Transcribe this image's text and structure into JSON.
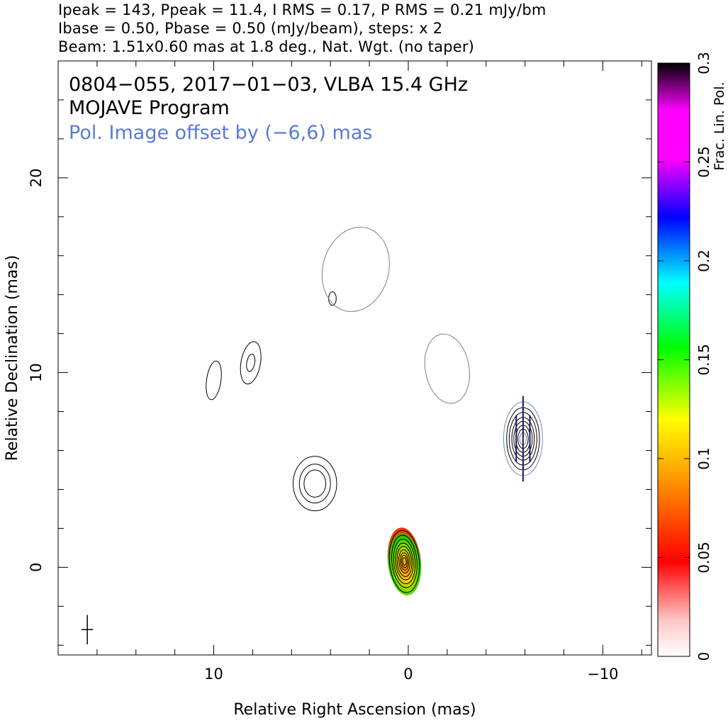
{
  "header": {
    "line1": "Ipeak = 143, Ppeak = 11.4, I RMS = 0.17, P RMS = 0.21 mJy/bm",
    "line2": "Ibase = 0.50, Pbase = 0.50 (mJy/beam), steps: x 2",
    "line3": "Beam: 1.51x0.60 mas at 1.8 deg., Nat. Wgt. (no taper)"
  },
  "chart_data": {
    "type": "contour",
    "title": "0804−055, 2017−01−03, VLBA 15.4 GHz",
    "subtitle": "MOJAVE Program",
    "annotation": "Pol. Image offset by (−6,6) mas",
    "annotation_color": "#5a7ad8",
    "xlabel": "Relative Right Ascension (mas)",
    "ylabel": "Relative Declination (mas)",
    "xlim": [
      18,
      -12.5
    ],
    "ylim": [
      -4.5,
      26
    ],
    "xticks": [
      10,
      0,
      -10
    ],
    "xtick_labels": [
      "10",
      "0",
      "−10"
    ],
    "yticks": [
      0,
      10,
      20
    ],
    "ytick_labels": [
      "0",
      "10",
      "20"
    ],
    "colorbar": {
      "label": "Frac. Lin. Pol.",
      "range": [
        0,
        0.3
      ],
      "ticks": [
        0,
        0.05,
        0.1,
        0.15,
        0.2,
        0.25,
        0.3
      ],
      "tick_labels": [
        "0",
        "0.05",
        "0.1",
        "0.15",
        "0.2",
        "0.25",
        "0.3"
      ],
      "colors": [
        "#ffffff",
        "#ff0000",
        "#ff9900",
        "#ffff00",
        "#00ff00",
        "#00ffff",
        "#0000ff",
        "#ff00ff",
        "#000000"
      ]
    },
    "beam": {
      "major_mas": 1.51,
      "minor_mas": 0.6,
      "pa_deg": 1.8
    },
    "intensity_components": [
      {
        "name": "core",
        "x": 0.2,
        "y": 0.3,
        "levels": [
          1.6,
          1.35,
          1.15,
          0.95,
          0.78,
          0.6,
          0.45,
          0.32,
          0.2
        ],
        "aspect": 2.1,
        "pa": -5
      },
      {
        "name": "knot-5-4",
        "x": 4.8,
        "y": 4.3,
        "levels": [
          1.4,
          1.0,
          0.7
        ],
        "aspect": 1.25,
        "pa": 0
      },
      {
        "name": "jet-10-9",
        "x": 10,
        "y": 9.6,
        "levels": [
          1.0
        ],
        "aspect": 2.7,
        "pa": 8
      },
      {
        "name": "jet-8-10",
        "x": 8.1,
        "y": 10.5,
        "levels": [
          1.1,
          0.45
        ],
        "aspect": 2.2,
        "pa": 10
      },
      {
        "name": "blob-4-14",
        "x": 3.9,
        "y": 13.8,
        "levels": [
          0.35
        ],
        "aspect": 1.8,
        "pa": 0
      }
    ],
    "pol_offset_mas": [
      -6,
      6
    ],
    "pol_components": [
      {
        "name": "offset-core",
        "x": -5.9,
        "y": 6.6,
        "levels": [
          1.9,
          1.6,
          1.35,
          1.1,
          0.9,
          0.7,
          0.5,
          0.32
        ],
        "aspect": 1.9,
        "pa": 0
      },
      {
        "name": "cloud-2-15",
        "x": 2.7,
        "y": 15.3,
        "levels": [
          2.2
        ],
        "aspect": 1.3,
        "pa": 15
      },
      {
        "name": "cloud-neg2-10",
        "x": -2,
        "y": 10.2,
        "levels": [
          1.8
        ],
        "aspect": 1.6,
        "pa": -10
      }
    ],
    "frac_pol_peak_region": {
      "x": 0.2,
      "y": 0.3,
      "min": 0.05,
      "max": 0.17
    }
  }
}
